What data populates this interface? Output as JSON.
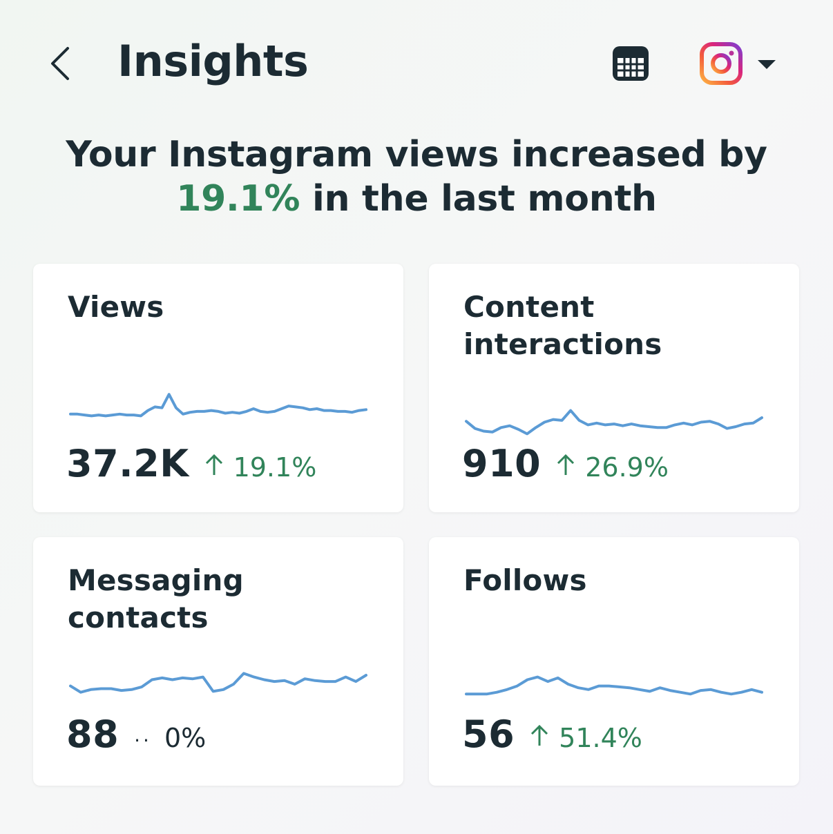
{
  "header": {
    "title": "Insights"
  },
  "summary": {
    "line1": "Your Instagram views increased by",
    "percent": "19.1%",
    "line2_rest": " in the last month"
  },
  "colors": {
    "positive": "#31845a",
    "sparkline": "#5b9bd5",
    "text": "#1c2b33"
  },
  "cards": [
    {
      "title": "Views",
      "value": "37.2K",
      "change": "19.1%",
      "direction": "up",
      "trend": [
        34,
        34,
        33,
        32,
        33,
        32,
        33,
        34,
        33,
        33,
        32,
        38,
        42,
        41,
        56,
        41,
        34,
        36,
        37,
        37,
        38,
        37,
        35,
        36,
        35,
        37,
        40,
        37,
        36,
        37,
        40,
        43,
        42,
        41,
        39,
        40,
        38,
        38,
        37,
        37,
        36,
        38,
        39
      ]
    },
    {
      "title": "Content interactions",
      "value": "910",
      "change": "26.9%",
      "direction": "up",
      "trend": [
        26,
        18,
        15,
        14,
        19,
        21,
        17,
        12,
        19,
        25,
        28,
        27,
        38,
        27,
        22,
        24,
        22,
        23,
        21,
        23,
        21,
        20,
        19,
        19,
        22,
        24,
        22,
        25,
        26,
        23,
        18,
        20,
        23,
        24,
        30
      ]
    },
    {
      "title": "Messaging contacts",
      "value": "88",
      "change": "0%",
      "direction": "flat",
      "trend": [
        28,
        21,
        24,
        25,
        25,
        23,
        24,
        27,
        35,
        37,
        35,
        37,
        36,
        38,
        22,
        24,
        30,
        42,
        38,
        35,
        33,
        34,
        30,
        36,
        34,
        33,
        33,
        38,
        33,
        40
      ]
    },
    {
      "title": "Follows",
      "value": "56",
      "change": "51.4%",
      "direction": "up",
      "trend": [
        19,
        19,
        19,
        21,
        24,
        28,
        35,
        38,
        33,
        37,
        30,
        26,
        24,
        28,
        28,
        27,
        26,
        24,
        22,
        26,
        23,
        21,
        19,
        23,
        24,
        21,
        19,
        21,
        24,
        21
      ]
    }
  ]
}
